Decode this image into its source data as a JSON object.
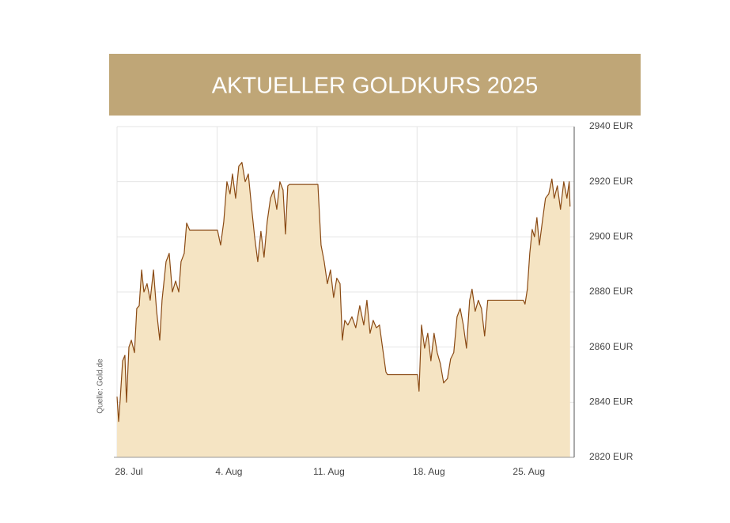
{
  "chart_data": {
    "type": "area",
    "title": "AKTUELLER GOLDKURS 2025",
    "source": "Quelle: Gold.de",
    "x": [
      0,
      0.11,
      0.22,
      0.39,
      0.55,
      0.66,
      0.83,
      1.0,
      1.22,
      1.38,
      1.55,
      1.72,
      1.88,
      2.1,
      2.32,
      2.55,
      2.77,
      2.99,
      3.15,
      3.43,
      3.65,
      3.87,
      4.1,
      4.32,
      4.48,
      4.7,
      4.87,
      5.09,
      7.03,
      7.25,
      7.47,
      7.69,
      7.91,
      8.08,
      8.3,
      8.52,
      8.74,
      8.97,
      9.19,
      9.41,
      9.63,
      9.85,
      10.07,
      10.29,
      10.51,
      10.74,
      10.96,
      11.18,
      11.4,
      11.62,
      11.79,
      11.95,
      12.06,
      14.06,
      14.28,
      14.5,
      14.72,
      14.94,
      15.16,
      15.38,
      15.61,
      15.77,
      15.94,
      16.16,
      16.44,
      16.71,
      16.99,
      17.27,
      17.49,
      17.71,
      17.93,
      18.15,
      18.37,
      18.59,
      18.82,
      18.93,
      21.03,
      21.14,
      21.31,
      21.53,
      21.75,
      21.97,
      22.19,
      22.41,
      22.63,
      22.86,
      23.13,
      23.35,
      23.57,
      23.8,
      24.02,
      24.24,
      24.46,
      24.68,
      24.85,
      25.07,
      25.29,
      25.51,
      25.73,
      25.95,
      28.44,
      28.56,
      28.72,
      28.89,
      29.06,
      29.22,
      29.39,
      29.56,
      29.77,
      29.99,
      30.22,
      30.44,
      30.6,
      30.82,
      31.04,
      31.27,
      31.49,
      31.65,
      31.71
    ],
    "series": [
      {
        "name": "Goldkurs",
        "color": "#8a4a14",
        "fill": "#f5e4c3",
        "values": [
          2842,
          2833,
          2841,
          2855,
          2857,
          2840,
          2860,
          2862.5,
          2858,
          2874,
          2875,
          2888,
          2880,
          2883,
          2877,
          2888,
          2873,
          2862.5,
          2877,
          2891,
          2894,
          2880,
          2884,
          2880,
          2891,
          2894,
          2905,
          2902.4,
          2902.4,
          2897,
          2905.5,
          2920,
          2915.6,
          2922.8,
          2914,
          2925.6,
          2927,
          2920,
          2922.8,
          2911,
          2900,
          2891,
          2902,
          2892.6,
          2905.5,
          2914,
          2917,
          2910,
          2920,
          2917,
          2901,
          2918.5,
          2919,
          2919,
          2897,
          2891,
          2883,
          2888,
          2878,
          2885,
          2883,
          2862.5,
          2869.7,
          2868,
          2871,
          2867,
          2875,
          2868,
          2877,
          2865,
          2869.7,
          2867,
          2868,
          2859.6,
          2851,
          2850,
          2850,
          2844,
          2868,
          2859.6,
          2865,
          2855,
          2865,
          2858,
          2854,
          2847,
          2848.6,
          2855.7,
          2858,
          2871,
          2874,
          2868,
          2859.6,
          2877,
          2881,
          2873,
          2877,
          2874,
          2864,
          2877,
          2877,
          2875.6,
          2881,
          2894,
          2902.7,
          2900,
          2907,
          2897,
          2905.5,
          2914,
          2915.6,
          2921,
          2914,
          2918.5,
          2910,
          2920,
          2914,
          2920,
          2911
        ]
      }
    ],
    "xlim": [
      0,
      32
    ],
    "xticks": [
      {
        "value": 0,
        "label": "28. Jul"
      },
      {
        "value": 7,
        "label": "4. Aug"
      },
      {
        "value": 14,
        "label": "11. Aug"
      },
      {
        "value": 21,
        "label": "18. Aug"
      },
      {
        "value": 28,
        "label": "25. Aug"
      }
    ],
    "ylim": [
      2820,
      2940
    ],
    "yticks": [
      {
        "value": 2820,
        "label": "2820 EUR"
      },
      {
        "value": 2840,
        "label": "2840 EUR"
      },
      {
        "value": 2860,
        "label": "2860 EUR"
      },
      {
        "value": 2880,
        "label": "2880 EUR"
      },
      {
        "value": 2900,
        "label": "2900 EUR"
      },
      {
        "value": 2920,
        "label": "2920 EUR"
      },
      {
        "value": 2940,
        "label": "2940 EUR"
      }
    ],
    "grid": true,
    "title_color": "#bfa677"
  }
}
